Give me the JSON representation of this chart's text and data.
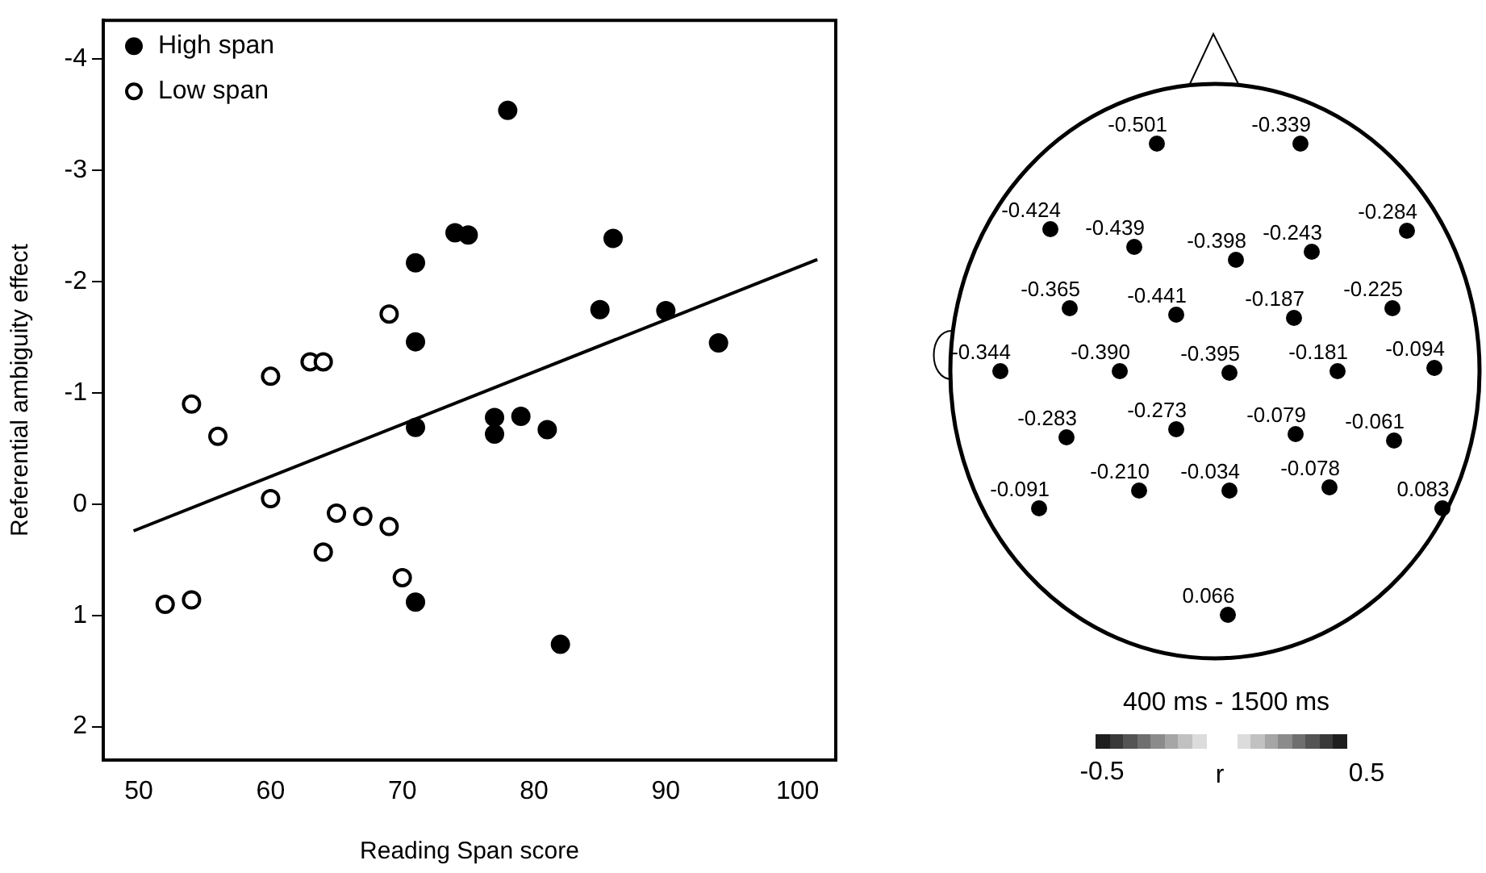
{
  "chart_data": [
    {
      "type": "scatter",
      "xlabel": "Reading Span score",
      "ylabel": "Referential ambiguity effect",
      "xlim": [
        47.3,
        102.9
      ],
      "xticks": [
        50,
        60,
        70,
        80,
        90,
        100
      ],
      "ylim": [
        2.3,
        -4.35
      ],
      "yticks": [
        -4,
        -3,
        -2,
        -1,
        0,
        1,
        2
      ],
      "grid": false,
      "legend": "top left",
      "marker": "circle",
      "series": [
        {
          "name": "High span",
          "color": "#000000",
          "x": [
            71,
            71,
            71,
            71,
            74,
            75,
            78,
            77,
            77,
            79,
            81,
            85,
            86,
            90,
            94,
            82
          ],
          "values": [
            -2.17,
            -1.46,
            -0.69,
            0.88,
            -2.44,
            -2.42,
            -3.54,
            -0.78,
            -0.63,
            -0.79,
            -0.67,
            -1.75,
            -2.39,
            -1.74,
            -1.45,
            1.26
          ]
        },
        {
          "name": "Low span",
          "color": "#000000",
          "x": [
            54,
            56,
            60,
            63,
            64,
            69,
            52,
            54,
            60,
            65,
            67,
            69,
            64,
            70
          ],
          "values": [
            -0.9,
            -0.61,
            -1.15,
            -1.28,
            -1.28,
            -1.71,
            0.9,
            0.86,
            -0.05,
            0.08,
            0.11,
            0.2,
            0.43,
            0.66
          ]
        },
        {
          "type": "line",
          "color": "#000000",
          "marker": "none",
          "x": [
            49.6,
            101.5
          ],
          "values": [
            0.24,
            -2.2
          ]
        }
      ]
    },
    {
      "type": "other",
      "title": "400 ms - 1500 ms",
      "clabel": "r",
      "annotations": [
        "-0.501",
        "-0.339",
        "-0.424",
        "-0.439",
        "-0.398",
        "-0.243",
        "-0.284",
        "-0.365",
        "-0.441",
        "-0.187",
        "-0.225",
        "-0.344",
        "-0.390",
        "-0.395",
        "-0.181",
        "-0.094",
        "-0.283",
        "-0.273",
        "-0.079",
        "-0.061",
        "-0.210",
        "-0.034",
        "-0.078",
        "0.083",
        "-0.091",
        "0.066",
        "-0.5",
        "0.5"
      ]
    }
  ]
}
